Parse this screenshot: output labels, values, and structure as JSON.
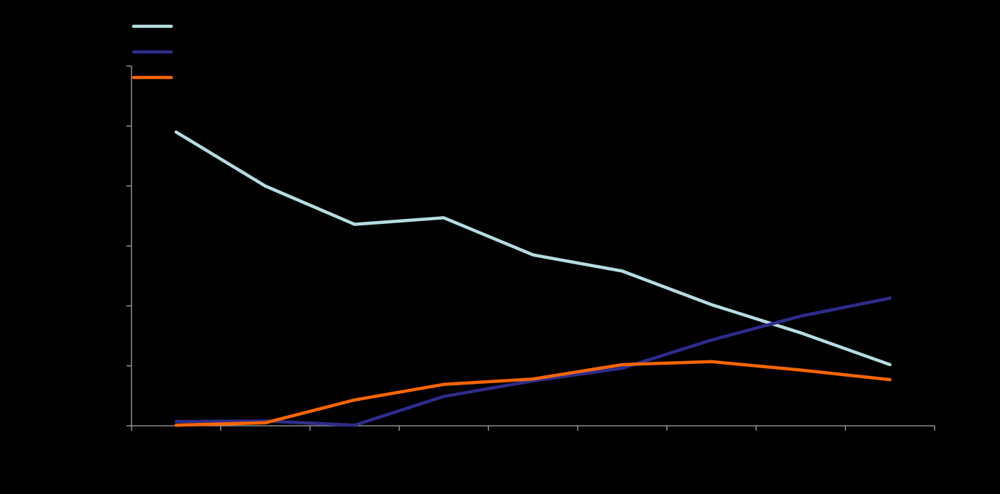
{
  "chart_data": {
    "type": "line",
    "background_color": "#000000",
    "axis_color": "#a6a6a6",
    "x": [
      1,
      2,
      3,
      4,
      5,
      6,
      7,
      8,
      9
    ],
    "xlim": [
      0.5,
      9.5
    ],
    "ylim": [
      0,
      60
    ],
    "y_major_step": 10,
    "grid": false,
    "legend_position": "top-left",
    "series": [
      {
        "color": "#b4dde0",
        "values": [
          49,
          40,
          33.6,
          34.7,
          28.5,
          25.8,
          20.2,
          15.5,
          10.2
        ]
      },
      {
        "color": "#2e2c8c",
        "values": [
          0.7,
          0.8,
          0.1,
          4.9,
          7.5,
          9.6,
          14.3,
          18.3,
          21.3
        ]
      },
      {
        "color": "#ff6600",
        "values": [
          0.1,
          0.5,
          4.3,
          6.9,
          7.8,
          10.2,
          10.7,
          9.3,
          7.7
        ]
      }
    ]
  }
}
